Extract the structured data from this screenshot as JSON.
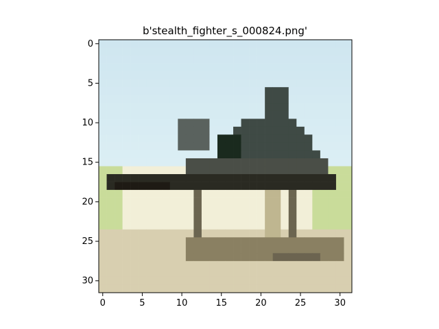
{
  "figure": {
    "title": "b'stealth_fighter_s_000824.png'"
  },
  "axes": {
    "x_ticks": [
      "0",
      "5",
      "10",
      "15",
      "20",
      "25",
      "30"
    ],
    "y_ticks": [
      "0",
      "5",
      "10",
      "15",
      "20",
      "25",
      "30"
    ],
    "image_size": [
      32,
      32
    ]
  },
  "image": {
    "description_icon": "stealth-aircraft-pixel-image",
    "palette": {
      "sky_top": "#cfe6f0",
      "sky_bottom": "#dceff4",
      "aircraft_dark": "#3f4a45",
      "aircraft_shadow": "#2a2a22",
      "cockpit": "#1a2a1e",
      "ground_light": "#f2efd8",
      "ground_mid": "#d8cfb0",
      "grass": "#c9dc9a"
    }
  }
}
